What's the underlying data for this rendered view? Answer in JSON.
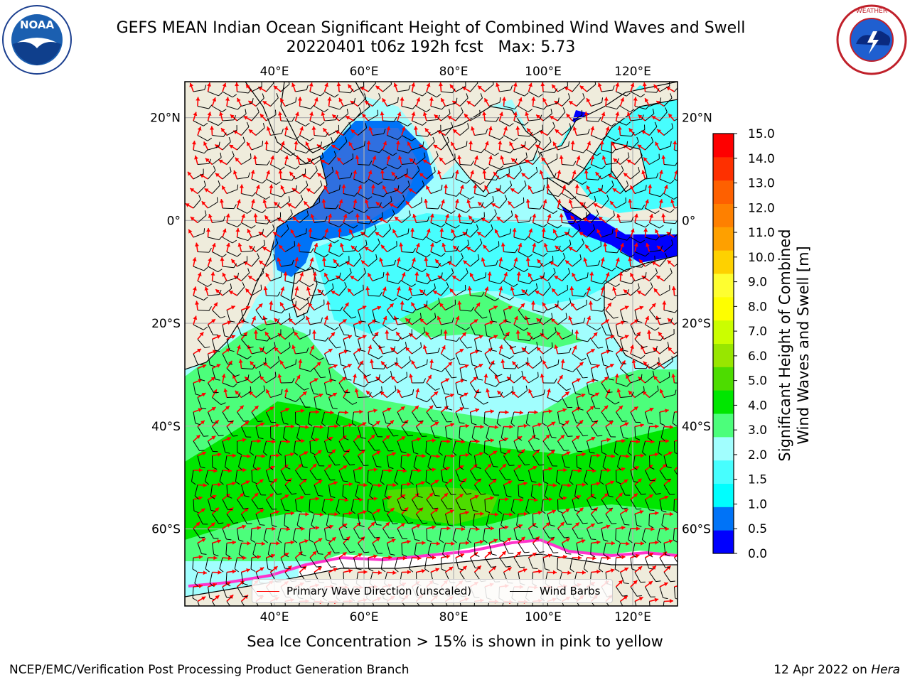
{
  "title": {
    "line1": "GEFS MEAN Indian Ocean Significant Height of Combined Wind Waves and Swell",
    "line2": "20220401 t06z 192h fcst   Max: 5.73"
  },
  "logos": {
    "left": {
      "text": "NOAA",
      "arc_text": "NATIONAL OCEANIC AND ATMOSPHERIC ADMINISTRATION",
      "bottom_text": "U.S. DEPARTMENT OF COMMERCE"
    },
    "right": {
      "arc_text": "NATIONAL WEATHER SERVICE"
    }
  },
  "map": {
    "lon_labels": [
      "40°E",
      "60°E",
      "80°E",
      "100°E",
      "120°E"
    ],
    "lat_labels": [
      "20°N",
      "0°",
      "20°S",
      "40°S",
      "60°S"
    ],
    "lon_range": [
      20,
      130
    ],
    "lat_range": [
      -75,
      27
    ],
    "gridlines": true,
    "max_value": 5.73,
    "background_land_color": "#efecdc"
  },
  "colorbar": {
    "label_line1": "Significant Height of Combined",
    "label_line2": "Wind Waves and Swell [m]",
    "ticks": [
      "15.0",
      "14.0",
      "13.0",
      "12.0",
      "11.0",
      "10.0",
      "9.0",
      "8.0",
      "7.0",
      "6.0",
      "5.0",
      "4.0",
      "3.0",
      "2.0",
      "1.5",
      "1.0",
      "0.5",
      "0.0"
    ],
    "colors": [
      "#0000fe",
      "#0073f7",
      "#00fefe",
      "#47fefe",
      "#a1fefe",
      "#4cfe7b",
      "#00e600",
      "#4ddc00",
      "#98e600",
      "#cbfe00",
      "#fefe00",
      "#fefe30",
      "#fed100",
      "#fea000",
      "#fe8000",
      "#fe6000",
      "#fe3000",
      "#fe0000"
    ]
  },
  "legend": {
    "wave_direction": "Primary Wave Direction (unscaled)",
    "wave_color": "#ff0000",
    "wind_barbs": "Wind Barbs",
    "wind_color": "#000000"
  },
  "footnote": "Sea Ice Concentration > 15% is shown in pink to yellow",
  "footer": {
    "left": "NCEP/EMC/Verification Post Processing Product Generation Branch",
    "date": "12 Apr 2022 on ",
    "host": "Hera"
  }
}
